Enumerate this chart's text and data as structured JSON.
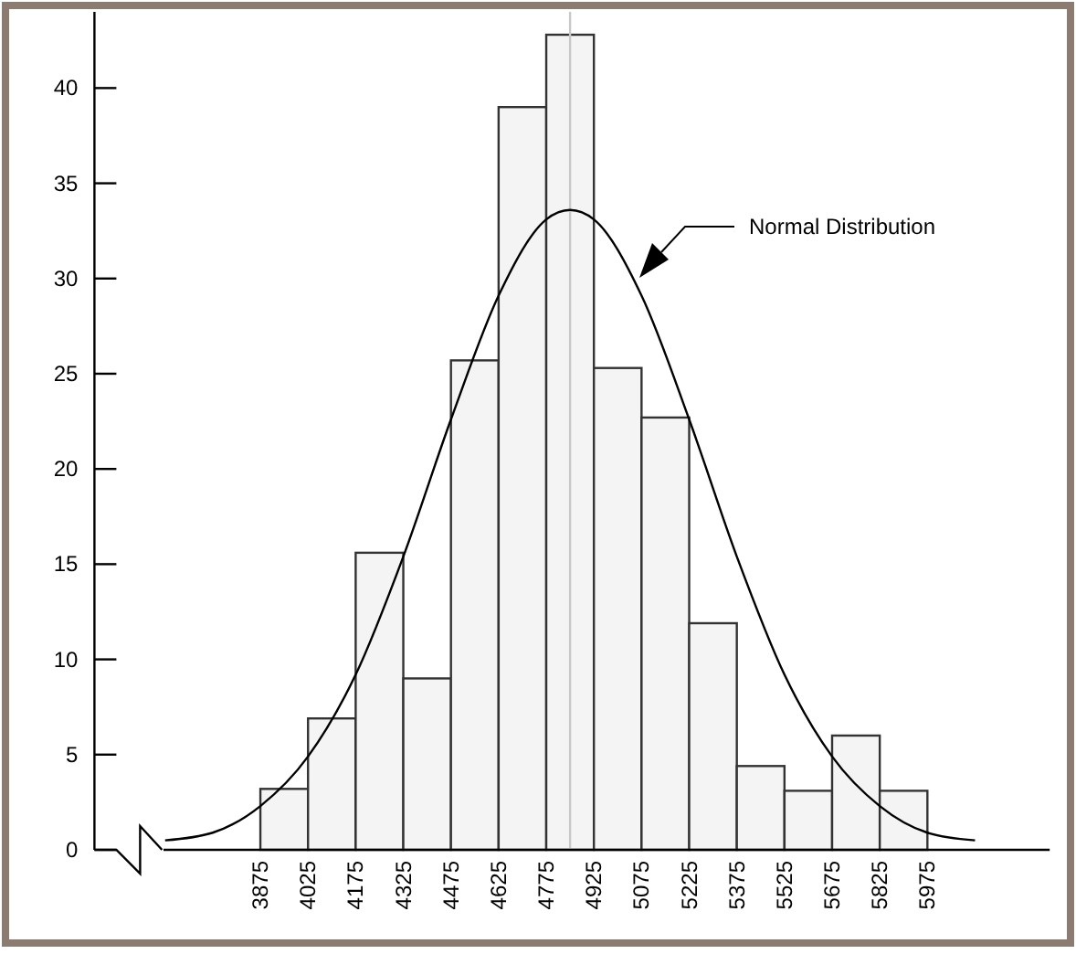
{
  "chart_data": {
    "type": "histogram",
    "bins": [
      3875,
      4025,
      4175,
      4325,
      4475,
      4625,
      4775,
      4925,
      5075,
      5225,
      5375,
      5525,
      5675,
      5825,
      5975
    ],
    "values": [
      3.2,
      6.9,
      15.6,
      9.0,
      25.7,
      39.0,
      42.8,
      25.3,
      22.7,
      11.9,
      4.4,
      3.1,
      6.0,
      3.1
    ],
    "color": "#f4f4f4",
    "series": [
      {
        "type": "line",
        "color": "#000000",
        "x": [
          3575,
          3725,
          3875,
          4025,
          4175,
          4325,
          4475,
          4625,
          4775,
          4850,
          4925,
          5075,
          5225,
          5375,
          5525,
          5675,
          5825,
          5975,
          6125
        ],
        "values": [
          0.5,
          0.9,
          2.3,
          4.9,
          9.2,
          15.4,
          22.6,
          29.1,
          33.1,
          33.6,
          33.1,
          29.1,
          22.6,
          15.4,
          9.2,
          4.9,
          2.3,
          0.9,
          0.5
        ]
      }
    ],
    "xlim": [
      3570,
      6360
    ],
    "xticks": [
      3875,
      4025,
      4175,
      4325,
      4475,
      4625,
      4775,
      4925,
      5075,
      5225,
      5375,
      5525,
      5675,
      5825,
      5975
    ],
    "ylim": [
      0,
      44
    ],
    "yticks": [
      0,
      5,
      10,
      15,
      20,
      25,
      30,
      35,
      40
    ],
    "ref_lines": [
      {
        "axis": "x",
        "value": 4850,
        "color": "#c8c8c8"
      }
    ],
    "annotations": [
      "Normal Distribution"
    ],
    "grid": false
  }
}
